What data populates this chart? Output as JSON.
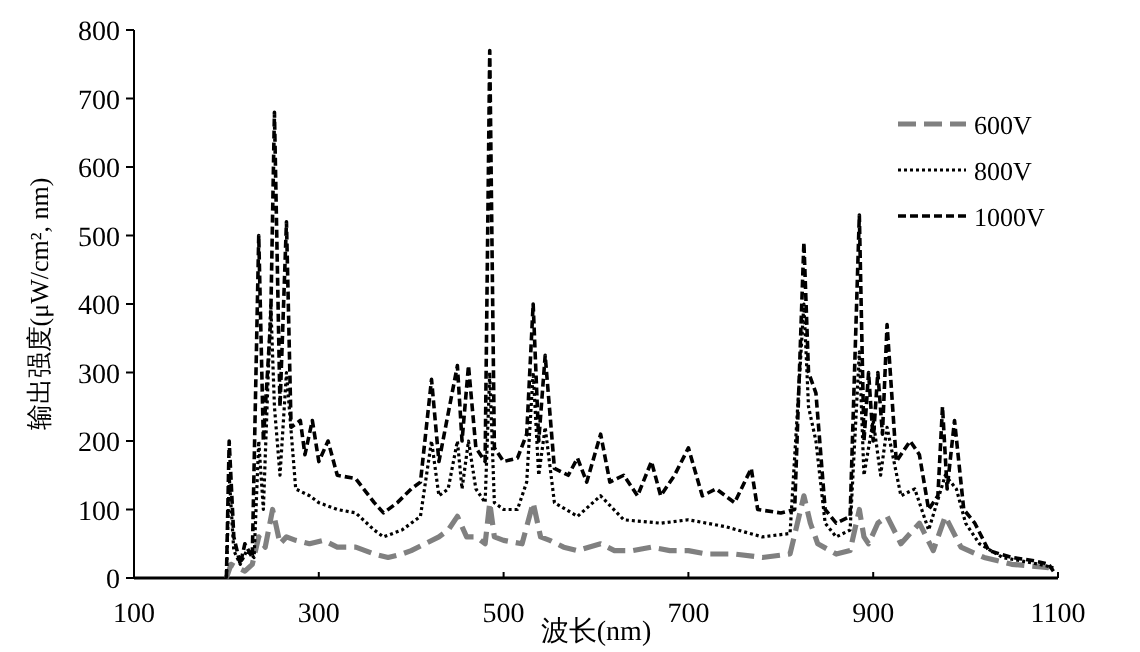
{
  "chart_data": {
    "type": "line",
    "xlabel": "波长(nm)",
    "ylabel": "输出强度(μW/cm², nm)",
    "xlim": [
      100,
      1100
    ],
    "xticks": [
      100,
      300,
      500,
      700,
      900,
      1100
    ],
    "ylim": [
      0,
      800
    ],
    "yticks": [
      0,
      100,
      200,
      300,
      400,
      500,
      600,
      700,
      800
    ],
    "grid": false,
    "legend": "top right",
    "series": [
      {
        "name": "600V",
        "color": "#808080",
        "line_style": "dashed",
        "x": [
          200,
          205,
          212,
          220,
          228,
          235,
          242,
          250,
          258,
          265,
          275,
          290,
          305,
          320,
          340,
          360,
          375,
          390,
          400,
          415,
          430,
          440,
          450,
          460,
          470,
          480,
          485,
          490,
          500,
          520,
          532,
          540,
          550,
          565,
          580,
          605,
          620,
          640,
          660,
          680,
          700,
          720,
          750,
          780,
          810,
          825,
          832,
          840,
          860,
          875,
          885,
          890,
          895,
          905,
          915,
          930,
          950,
          965,
          978,
          995,
          1020,
          1050,
          1090,
          1095
        ],
        "values": [
          0,
          20,
          15,
          10,
          20,
          60,
          45,
          100,
          50,
          60,
          55,
          50,
          55,
          45,
          45,
          35,
          30,
          35,
          40,
          50,
          60,
          70,
          90,
          60,
          60,
          50,
          110,
          60,
          55,
          50,
          110,
          60,
          55,
          45,
          40,
          50,
          40,
          40,
          45,
          40,
          40,
          35,
          35,
          30,
          35,
          120,
          80,
          50,
          35,
          40,
          100,
          60,
          50,
          80,
          90,
          50,
          80,
          40,
          90,
          45,
          30,
          20,
          15,
          5
        ]
      },
      {
        "name": "800V",
        "color": "#000000",
        "line_style": "dotted",
        "x": [
          200,
          203,
          208,
          215,
          222,
          230,
          235,
          240,
          248,
          252,
          258,
          265,
          275,
          290,
          300,
          320,
          340,
          360,
          370,
          390,
          410,
          422,
          430,
          440,
          450,
          455,
          462,
          470,
          480,
          485,
          490,
          500,
          515,
          525,
          532,
          538,
          545,
          555,
          580,
          605,
          630,
          670,
          700,
          740,
          780,
          810,
          825,
          830,
          838,
          848,
          860,
          875,
          885,
          890,
          900,
          908,
          915,
          930,
          945,
          960,
          978,
          990,
          1000,
          1015,
          1040,
          1080,
          1095
        ],
        "values": [
          0,
          150,
          40,
          20,
          40,
          30,
          200,
          100,
          400,
          250,
          150,
          300,
          130,
          120,
          110,
          100,
          95,
          70,
          60,
          70,
          90,
          200,
          120,
          130,
          200,
          130,
          200,
          130,
          110,
          300,
          110,
          100,
          100,
          140,
          300,
          150,
          220,
          110,
          90,
          120,
          85,
          80,
          85,
          75,
          60,
          65,
          400,
          250,
          200,
          80,
          60,
          70,
          330,
          150,
          230,
          150,
          220,
          120,
          130,
          70,
          150,
          130,
          80,
          50,
          30,
          20,
          15
        ]
      },
      {
        "name": "1000V",
        "color": "#000000",
        "line_style": "dashed",
        "x": [
          200,
          203,
          208,
          215,
          220,
          228,
          235,
          240,
          248,
          252,
          258,
          265,
          270,
          280,
          285,
          293,
          300,
          310,
          320,
          340,
          360,
          370,
          385,
          400,
          410,
          422,
          430,
          440,
          450,
          455,
          462,
          470,
          480,
          485,
          490,
          500,
          515,
          525,
          532,
          538,
          545,
          555,
          570,
          580,
          590,
          605,
          615,
          630,
          645,
          660,
          670,
          685,
          700,
          715,
          730,
          750,
          768,
          775,
          800,
          815,
          825,
          830,
          838,
          848,
          860,
          875,
          885,
          890,
          895,
          900,
          905,
          910,
          915,
          925,
          940,
          950,
          960,
          970,
          975,
          980,
          988,
          998,
          1010,
          1025,
          1050,
          1075,
          1090,
          1095
        ],
        "values": [
          0,
          200,
          60,
          20,
          50,
          30,
          500,
          200,
          380,
          680,
          250,
          520,
          220,
          230,
          180,
          230,
          170,
          200,
          150,
          145,
          110,
          95,
          110,
          130,
          140,
          290,
          170,
          240,
          310,
          200,
          310,
          190,
          170,
          770,
          190,
          170,
          175,
          210,
          400,
          200,
          325,
          160,
          150,
          175,
          140,
          210,
          140,
          150,
          120,
          170,
          120,
          150,
          190,
          120,
          130,
          110,
          160,
          100,
          95,
          100,
          490,
          300,
          270,
          100,
          80,
          90,
          530,
          200,
          300,
          200,
          300,
          210,
          370,
          170,
          200,
          180,
          100,
          120,
          250,
          130,
          230,
          100,
          80,
          40,
          30,
          25,
          20,
          10
        ]
      }
    ]
  }
}
